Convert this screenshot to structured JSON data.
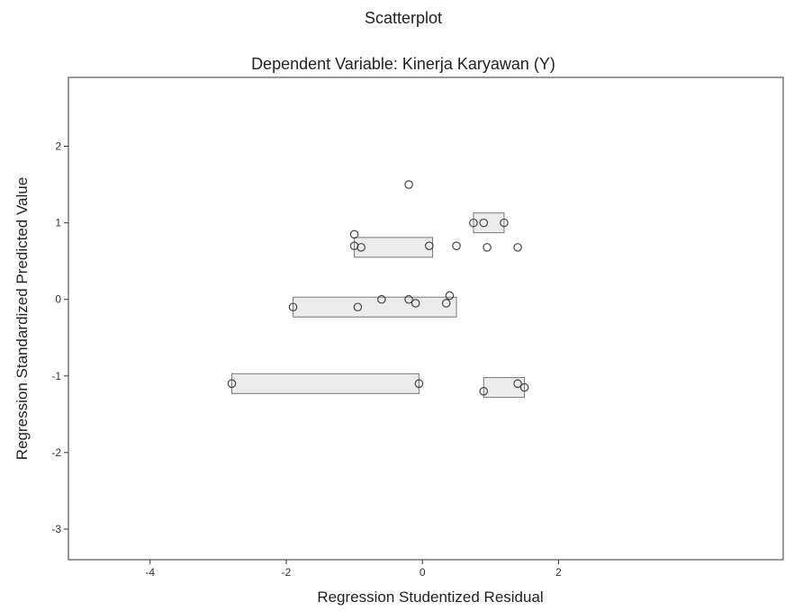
{
  "chart_data": {
    "type": "scatter",
    "title": "Scatterplot",
    "subtitle": "Dependent Variable: Kinerja Karyawan (Y)",
    "xlabel": "Regression Studentized Residual",
    "ylabel": "Regression Standardized Predicted Value",
    "xlim": [
      -5.2,
      5.3
    ],
    "ylim": [
      -3.4,
      2.9
    ],
    "x_ticks": [
      "-4",
      "-2",
      "0",
      "2"
    ],
    "x_tick_values": [
      -4,
      -2,
      0,
      2
    ],
    "y_ticks": [
      "2",
      "1",
      "0",
      "-1",
      "-2",
      "-3"
    ],
    "y_tick_values": [
      2,
      1,
      0,
      -1,
      -2,
      -3
    ],
    "grid": false,
    "points": [
      {
        "x": -0.2,
        "y": 1.5
      },
      {
        "x": 0.75,
        "y": 1.0
      },
      {
        "x": 0.9,
        "y": 1.0
      },
      {
        "x": 1.2,
        "y": 1.0
      },
      {
        "x": -1.0,
        "y": 0.85
      },
      {
        "x": -1.0,
        "y": 0.7
      },
      {
        "x": -0.9,
        "y": 0.68
      },
      {
        "x": 0.1,
        "y": 0.7
      },
      {
        "x": 0.5,
        "y": 0.7
      },
      {
        "x": 0.95,
        "y": 0.68
      },
      {
        "x": 1.4,
        "y": 0.68
      },
      {
        "x": -0.6,
        "y": 0.0
      },
      {
        "x": -0.2,
        "y": 0.0
      },
      {
        "x": -0.1,
        "y": -0.05
      },
      {
        "x": 0.35,
        "y": -0.05
      },
      {
        "x": -0.95,
        "y": -0.1
      },
      {
        "x": -1.9,
        "y": -0.1
      },
      {
        "x": 0.4,
        "y": 0.05
      },
      {
        "x": -2.8,
        "y": -1.1
      },
      {
        "x": -0.05,
        "y": -1.1
      },
      {
        "x": 0.9,
        "y": -1.2
      },
      {
        "x": 1.4,
        "y": -1.1
      },
      {
        "x": 1.5,
        "y": -1.15
      }
    ],
    "bands": [
      {
        "x_from": -1.0,
        "x_to": 0.15,
        "y": 0.68
      },
      {
        "x_from": 0.75,
        "x_to": 1.2,
        "y": 1.0
      },
      {
        "x_from": -1.9,
        "x_to": 0.5,
        "y": -0.1
      },
      {
        "x_from": -2.8,
        "x_to": -0.05,
        "y": -1.1
      },
      {
        "x_from": 0.9,
        "x_to": 1.5,
        "y": -1.15
      }
    ]
  }
}
